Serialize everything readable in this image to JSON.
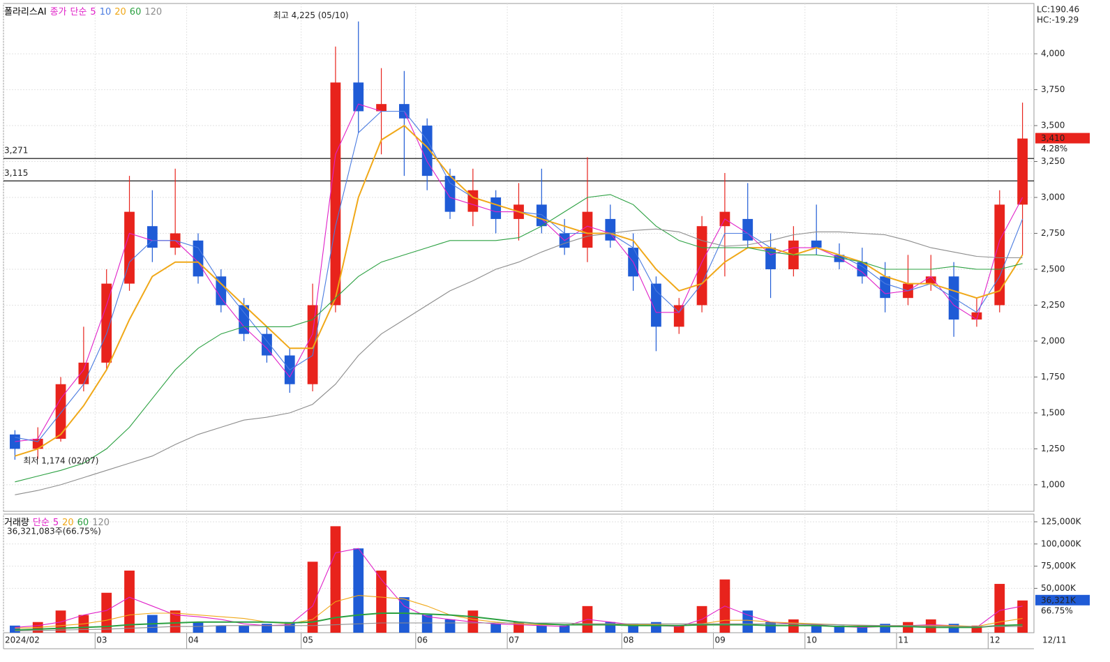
{
  "chart_data": [
    {
      "type": "candlestick",
      "title": "폴라리스AI",
      "legend_prefix": [
        "종가",
        "단순"
      ],
      "categories": [
        "2024/02",
        null,
        null,
        null,
        "03",
        null,
        null,
        null,
        "04",
        null,
        null,
        null,
        null,
        "05",
        null,
        null,
        null,
        null,
        "06",
        null,
        null,
        null,
        "07",
        null,
        null,
        null,
        null,
        "08",
        null,
        null,
        null,
        "09",
        null,
        null,
        null,
        "10",
        null,
        null,
        null,
        "11",
        null,
        null,
        null,
        "12",
        null
      ],
      "x_end_label": "12/11",
      "open": [
        1350,
        1250,
        1320,
        1700,
        1850,
        2400,
        2800,
        2650,
        2700,
        2450,
        2250,
        2050,
        1900,
        1700,
        2250,
        3800,
        3600,
        3650,
        3500,
        3150,
        2900,
        3000,
        2850,
        2950,
        2750,
        2650,
        2850,
        2650,
        2400,
        2100,
        2250,
        2800,
        2850,
        2650,
        2500,
        2700,
        2600,
        2550,
        2450,
        2300,
        2400,
        2450,
        2150,
        2250,
        2950
      ],
      "high": [
        1380,
        1400,
        1750,
        2100,
        2500,
        3150,
        3050,
        3200,
        2750,
        2500,
        2300,
        2100,
        1950,
        2400,
        4050,
        4225,
        3900,
        3880,
        3550,
        3200,
        3200,
        3050,
        3100,
        3200,
        2850,
        3280,
        2950,
        2750,
        2450,
        2300,
        2870,
        3170,
        3100,
        2750,
        2800,
        2950,
        2680,
        2650,
        2550,
        2600,
        2600,
        2550,
        2300,
        3050,
        3660
      ],
      "low": [
        1174,
        1180,
        1300,
        1650,
        1800,
        2350,
        2550,
        2600,
        2400,
        2200,
        2000,
        1850,
        1640,
        1650,
        2200,
        3450,
        3300,
        3150,
        3050,
        2850,
        2800,
        2750,
        2700,
        2750,
        2600,
        2550,
        2650,
        2350,
        1930,
        2050,
        2200,
        2450,
        2650,
        2300,
        2450,
        2600,
        2500,
        2400,
        2200,
        2250,
        2350,
        2030,
        2100,
        2200,
        2600
      ],
      "close": [
        1250,
        1320,
        1700,
        1850,
        2400,
        2900,
        2650,
        2750,
        2450,
        2250,
        2050,
        1900,
        1700,
        2250,
        3800,
        3600,
        3650,
        3550,
        3150,
        2900,
        3050,
        2850,
        2950,
        2800,
        2650,
        2900,
        2700,
        2450,
        2100,
        2250,
        2800,
        2900,
        2700,
        2500,
        2700,
        2650,
        2550,
        2450,
        2300,
        2400,
        2450,
        2150,
        2200,
        2950,
        3410
      ],
      "up_color": "#e8231c",
      "down_color": "#1f5bd6",
      "series": [
        {
          "name": "5",
          "color": "#e020c8",
          "values": [
            1300,
            1320,
            1600,
            1800,
            2250,
            2750,
            2700,
            2700,
            2550,
            2300,
            2100,
            1950,
            1750,
            2050,
            3300,
            3650,
            3600,
            3600,
            3250,
            3000,
            2950,
            2900,
            2900,
            2850,
            2700,
            2800,
            2750,
            2550,
            2200,
            2200,
            2550,
            2850,
            2750,
            2600,
            2650,
            2650,
            2580,
            2480,
            2330,
            2350,
            2450,
            2250,
            2150,
            2700,
            3000
          ]
        },
        {
          "name": "10",
          "color": "#4a7be0",
          "values": [
            1330,
            1300,
            1500,
            1700,
            2050,
            2550,
            2700,
            2700,
            2650,
            2400,
            2200,
            2000,
            1800,
            1900,
            2800,
            3450,
            3600,
            3600,
            3400,
            3100,
            3000,
            2950,
            2900,
            2880,
            2750,
            2750,
            2750,
            2650,
            2350,
            2200,
            2400,
            2750,
            2750,
            2650,
            2600,
            2650,
            2600,
            2520,
            2400,
            2350,
            2400,
            2300,
            2200,
            2450,
            2850
          ]
        },
        {
          "name": "20",
          "color": "#f0a818",
          "values": [
            1200,
            1250,
            1350,
            1550,
            1800,
            2150,
            2450,
            2550,
            2550,
            2400,
            2250,
            2100,
            1950,
            1950,
            2300,
            3000,
            3400,
            3500,
            3350,
            3150,
            3000,
            2950,
            2900,
            2850,
            2800,
            2750,
            2750,
            2700,
            2500,
            2350,
            2400,
            2550,
            2650,
            2650,
            2600,
            2650,
            2600,
            2550,
            2450,
            2400,
            2400,
            2350,
            2300,
            2350,
            2600
          ]
        },
        {
          "name": "60",
          "color": "#2aa040",
          "values": [
            1020,
            1060,
            1100,
            1150,
            1250,
            1400,
            1600,
            1800,
            1950,
            2050,
            2100,
            2100,
            2100,
            2150,
            2300,
            2450,
            2550,
            2600,
            2650,
            2700,
            2700,
            2700,
            2720,
            2800,
            2900,
            3000,
            3020,
            2950,
            2800,
            2700,
            2650,
            2650,
            2650,
            2620,
            2600,
            2600,
            2580,
            2550,
            2500,
            2500,
            2500,
            2520,
            2500,
            2500,
            2540
          ]
        },
        {
          "name": "120",
          "color": "#8c8c8c",
          "values": [
            930,
            960,
            1000,
            1050,
            1100,
            1150,
            1200,
            1280,
            1350,
            1400,
            1450,
            1470,
            1500,
            1560,
            1700,
            1900,
            2050,
            2150,
            2250,
            2350,
            2420,
            2500,
            2550,
            2620,
            2680,
            2730,
            2750,
            2770,
            2780,
            2760,
            2700,
            2660,
            2670,
            2700,
            2740,
            2760,
            2760,
            2750,
            2740,
            2700,
            2650,
            2620,
            2590,
            2580,
            2580
          ]
        }
      ],
      "ylim": [
        815,
        4350
      ],
      "yticks": [
        {
          "value": 1000,
          "label": "1,000"
        },
        {
          "value": 1250,
          "label": "1,250"
        },
        {
          "value": 1500,
          "label": "1,500"
        },
        {
          "value": 1750,
          "label": "1,750"
        },
        {
          "value": 2000,
          "label": "2,000"
        },
        {
          "value": 2250,
          "label": "2,250"
        },
        {
          "value": 2500,
          "label": "2,500"
        },
        {
          "value": 2750,
          "label": "2,750"
        },
        {
          "value": 3000,
          "label": "3,000"
        },
        {
          "value": 3250,
          "label": "3,250"
        },
        {
          "value": 3500,
          "label": "3,500"
        },
        {
          "value": 3750,
          "label": "3,750"
        },
        {
          "value": 4000,
          "label": "4,000"
        }
      ],
      "hlines": [
        {
          "value": 3271,
          "label": "3,271"
        },
        {
          "value": 3115,
          "label": "3,115"
        }
      ],
      "high_label": "최고 4,225 (05/10)",
      "low_label": "최저 1,174 (02/07)",
      "last_price": {
        "value": 3410,
        "label": "3,410"
      },
      "change_label": "4.28%",
      "lc_label": "LC:190.46",
      "hc_label": "HC:-19.29",
      "grid": true
    },
    {
      "type": "bar",
      "title": "거래량",
      "legend_prefix": [
        "단순"
      ],
      "summary_label": "36,321,083주(66.75%)",
      "values": [
        8000,
        12000,
        25000,
        20000,
        45000,
        70000,
        20000,
        25000,
        12000,
        8000,
        8000,
        10000,
        12000,
        80000,
        120000,
        95000,
        70000,
        40000,
        20000,
        15000,
        25000,
        10000,
        12000,
        8000,
        8000,
        30000,
        12000,
        10000,
        12000,
        8000,
        30000,
        60000,
        25000,
        12000,
        15000,
        10000,
        8000,
        8000,
        10000,
        12000,
        15000,
        10000,
        8000,
        55000,
        36321.083
      ],
      "last_value": {
        "value": 36321.083,
        "label": "36,321K"
      },
      "last_ratio_label": "66.75%",
      "series": [
        {
          "name": "5",
          "color": "#e020c8",
          "values": [
            6000,
            8000,
            12000,
            20000,
            25000,
            40000,
            30000,
            20000,
            18000,
            15000,
            10000,
            8000,
            9000,
            30000,
            90000,
            95000,
            60000,
            30000,
            18000,
            15000,
            12000,
            10000,
            9000,
            8000,
            7000,
            15000,
            12000,
            9000,
            8000,
            7000,
            15000,
            30000,
            20000,
            12000,
            10000,
            9000,
            7000,
            6000,
            7000,
            8000,
            9000,
            8000,
            6000,
            25000,
            30000
          ]
        },
        {
          "name": "20",
          "color": "#f0a818",
          "values": [
            5000,
            6000,
            8000,
            10000,
            14000,
            20000,
            22000,
            22000,
            20000,
            18000,
            16000,
            12000,
            10000,
            15000,
            35000,
            42000,
            40000,
            38000,
            30000,
            20000,
            15000,
            12000,
            10000,
            9000,
            9000,
            10000,
            10000,
            9000,
            9000,
            8000,
            10000,
            14000,
            14000,
            12000,
            11000,
            10000,
            9000,
            8000,
            8000,
            8000,
            8000,
            8000,
            7000,
            12000,
            16000
          ]
        },
        {
          "name": "60",
          "color": "#2aa040",
          "values": [
            3000,
            4000,
            5000,
            6000,
            7000,
            9000,
            10000,
            11000,
            12000,
            12000,
            12000,
            12000,
            11000,
            12000,
            17000,
            20000,
            22000,
            22000,
            21000,
            20000,
            18000,
            15000,
            12000,
            10000,
            9000,
            9000,
            9000,
            8000,
            8000,
            8000,
            9000,
            9000,
            9000,
            8000,
            8000,
            8000,
            7000,
            7000,
            7000,
            7000,
            6000,
            6000,
            6000,
            8000,
            9000
          ]
        },
        {
          "name": "120",
          "color": "#8c8c8c",
          "values": [
            2000,
            2500,
            3000,
            3500,
            4000,
            5000,
            6000,
            7000,
            7000,
            8000,
            8000,
            8000,
            8000,
            8000,
            9000,
            10000,
            11000,
            11000,
            11000,
            11000,
            11000,
            11000,
            11000,
            11000,
            11000,
            10000,
            10000,
            10000,
            10000,
            10000,
            10000,
            10000,
            10000,
            10000,
            10000,
            9500,
            9000,
            8500,
            8000,
            8000,
            7500,
            7000,
            7000,
            7000,
            7000
          ]
        }
      ],
      "ylim": [
        0,
        133650
      ],
      "yticks": [
        {
          "value": 50000,
          "label": "50,000K"
        },
        {
          "value": 75000,
          "label": "75,000K"
        },
        {
          "value": 100000,
          "label": "100,000K"
        },
        {
          "value": 125000,
          "label": "125,000K"
        }
      ]
    }
  ]
}
